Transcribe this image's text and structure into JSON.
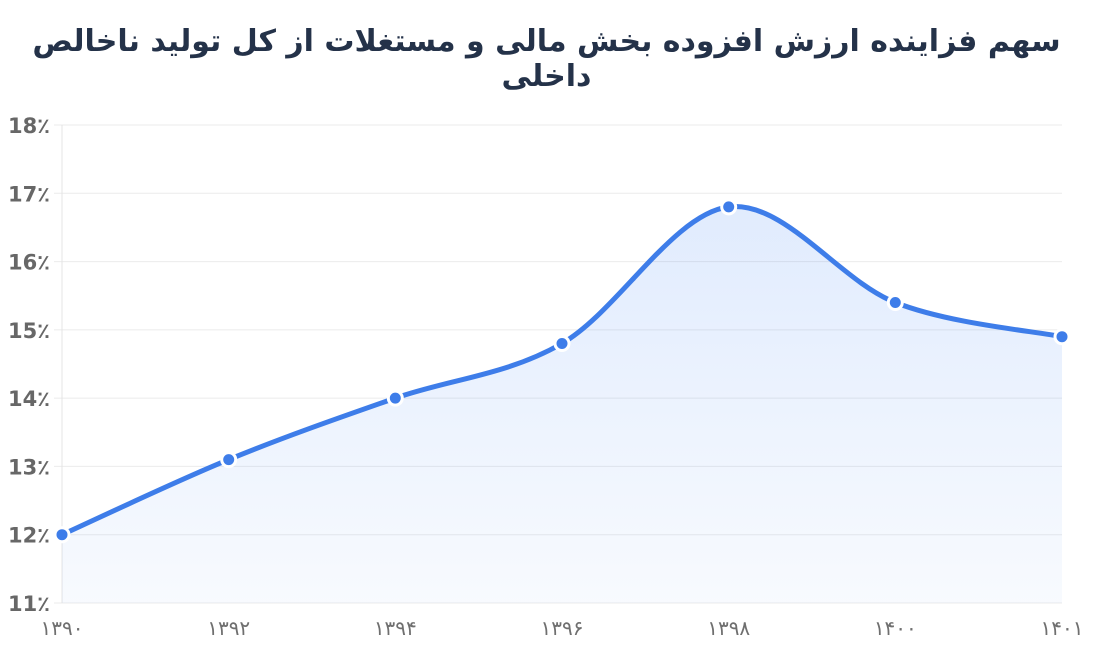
{
  "header": {
    "title": "سهم فزاینده ارزش افزوده بخش مالی و مستغلات از کل تولید ناخالص داخلی",
    "title_color": "#243249"
  },
  "chart_data": {
    "type": "area",
    "title": "سهم فزاینده ارزش افزوده بخش مالی و مستغلات از کل تولید ناخالص داخلی",
    "categories": [
      "۱۳۹۰",
      "۱۳۹۲",
      "۱۳۹۴",
      "۱۳۹۶",
      "۱۳۹۸",
      "۱۴۰۰",
      "۱۴۰۱"
    ],
    "values": [
      12.0,
      13.1,
      14.0,
      14.8,
      16.8,
      15.4,
      14.9
    ],
    "xlabel": "",
    "ylabel": "",
    "ylim": [
      11,
      18
    ],
    "ytick_step": 1,
    "ytick_labels": [
      "11٪",
      "12٪",
      "13٪",
      "14٪",
      "15٪",
      "16٪",
      "17٪",
      "18٪"
    ],
    "grid": true,
    "legend": "none",
    "line_color": "#3e7de9",
    "marker_color": "#3e7de9",
    "marker_border_color": "#ffffff",
    "fill_top_color": "rgba(66,133,244,0.16)",
    "fill_bottom_color": "rgba(66,133,244,0.04)",
    "grid_color": "#ebebeb",
    "axis_line_color": "#e4e4e4",
    "ytick_color": "#676767",
    "xtick_color": "#6f6f6f"
  }
}
